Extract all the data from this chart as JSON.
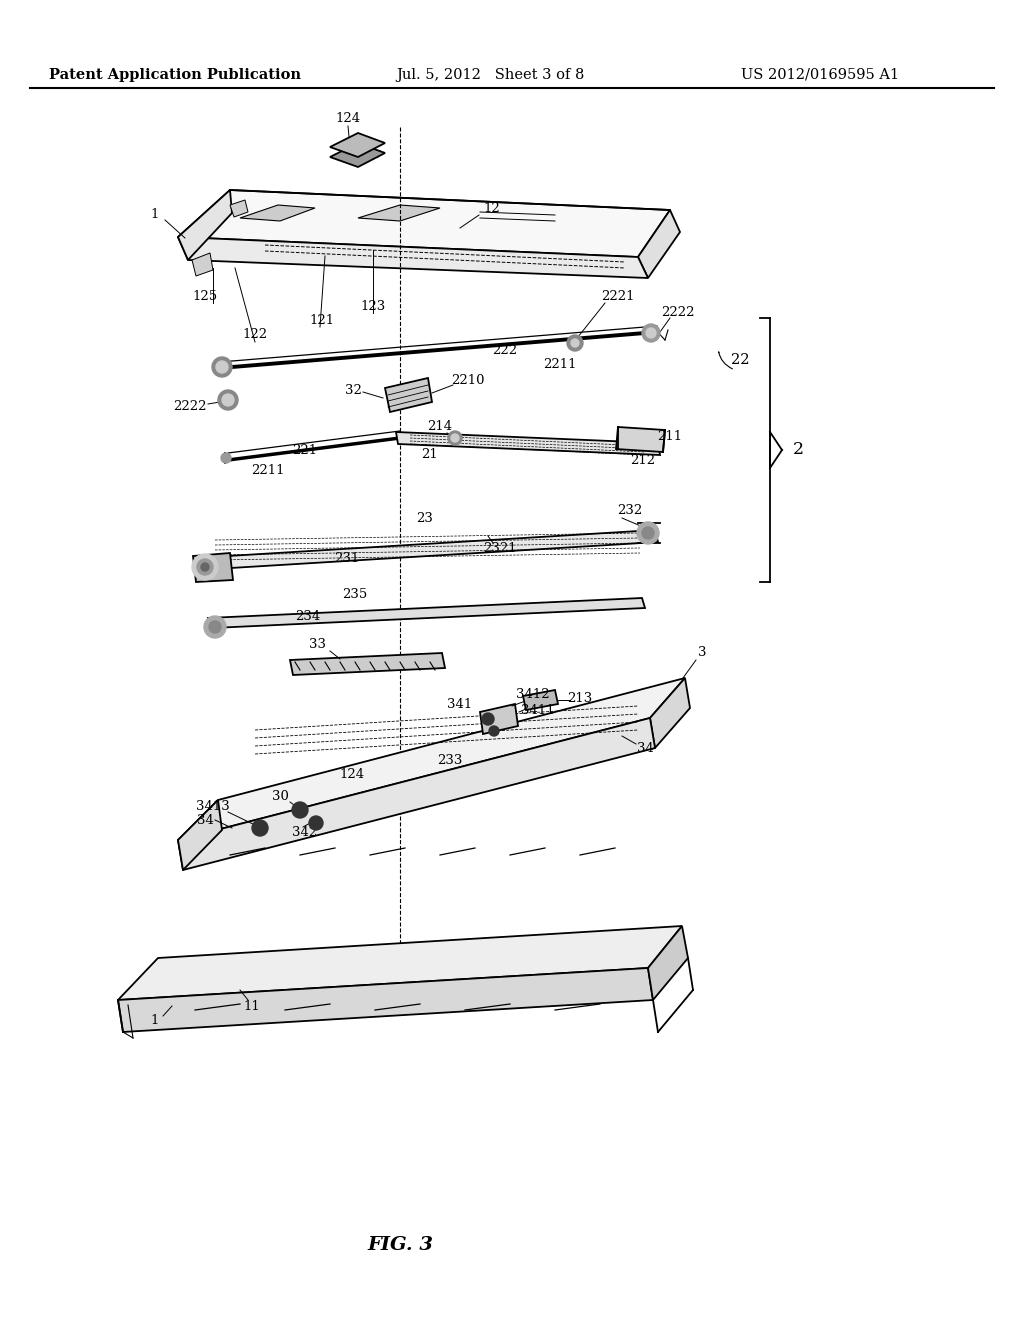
{
  "title_left": "Patent Application Publication",
  "title_center": "Jul. 5, 2012   Sheet 3 of 8",
  "title_right": "US 2012/0169595 A1",
  "figure_label": "FIG. 3",
  "bg_color": "#ffffff",
  "line_color": "#000000",
  "header_fontsize": 10.5,
  "label_fontsize": 9.5,
  "fig_label_fontsize": 14
}
